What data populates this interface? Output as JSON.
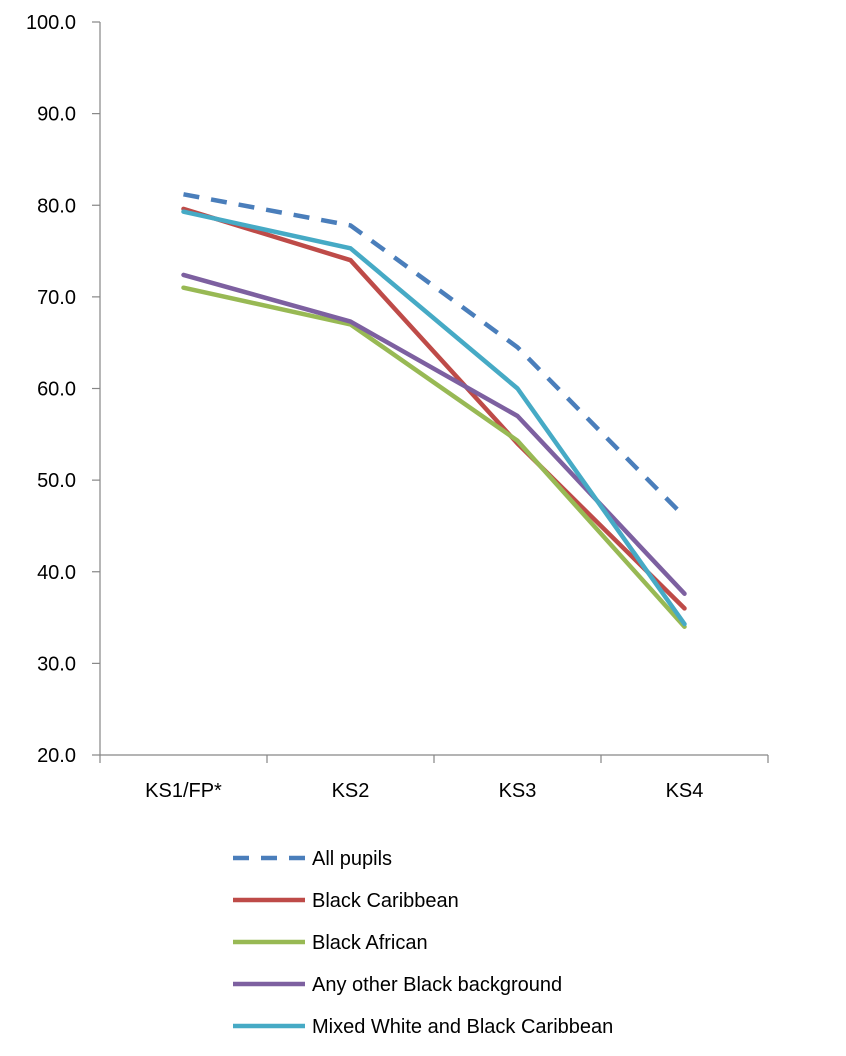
{
  "chart_data": {
    "type": "line",
    "categories": [
      "KS1/FP*",
      "KS2",
      "KS3",
      "KS4"
    ],
    "y_tick_labels": [
      "20.0",
      "30.0",
      "40.0",
      "50.0",
      "60.0",
      "70.0",
      "80.0",
      "90.0",
      "100.0"
    ],
    "ylim": [
      20,
      100
    ],
    "grid": false,
    "legend_position": "bottom",
    "series": [
      {
        "name": "All pupils",
        "values": [
          81.2,
          77.8,
          64.5,
          46.0
        ],
        "color": "#4a7ebb",
        "dashed": true
      },
      {
        "name": "Black Caribbean",
        "values": [
          79.6,
          74.0,
          54.0,
          36.0
        ],
        "color": "#be4b48",
        "dashed": false
      },
      {
        "name": "Black African",
        "values": [
          71.0,
          67.0,
          54.3,
          34.0
        ],
        "color": "#98b954",
        "dashed": false
      },
      {
        "name": "Any other Black background",
        "values": [
          72.4,
          67.3,
          57.0,
          37.6
        ],
        "color": "#7d60a0",
        "dashed": false
      },
      {
        "name": "Mixed White and Black Caribbean",
        "values": [
          79.3,
          75.3,
          60.0,
          34.3
        ],
        "color": "#46aac5",
        "dashed": false
      }
    ]
  }
}
